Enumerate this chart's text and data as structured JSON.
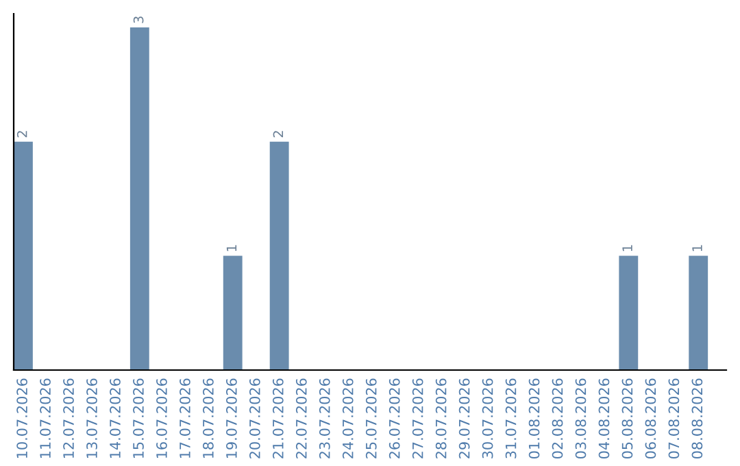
{
  "chart_data": {
    "type": "bar",
    "categories": [
      "10.07.2026",
      "11.07.2026",
      "12.07.2026",
      "13.07.2026",
      "14.07.2026",
      "15.07.2026",
      "16.07.2026",
      "17.07.2026",
      "18.07.2026",
      "19.07.2026",
      "20.07.2026",
      "21.07.2026",
      "22.07.2026",
      "23.07.2026",
      "24.07.2026",
      "25.07.2026",
      "26.07.2026",
      "27.07.2026",
      "28.07.2026",
      "29.07.2026",
      "30.07.2026",
      "31.07.2026",
      "01.08.2026",
      "02.08.2026",
      "03.08.2026",
      "04.08.2026",
      "05.08.2026",
      "06.08.2026",
      "07.08.2026",
      "08.08.2026"
    ],
    "values": [
      2,
      0,
      0,
      0,
      0,
      3,
      0,
      0,
      0,
      1,
      0,
      2,
      0,
      0,
      0,
      0,
      0,
      0,
      0,
      0,
      0,
      0,
      0,
      0,
      0,
      0,
      1,
      0,
      0,
      1
    ],
    "value_labels": [
      "2",
      null,
      null,
      null,
      null,
      "3",
      null,
      null,
      null,
      "1",
      null,
      "2",
      null,
      null,
      null,
      null,
      null,
      null,
      null,
      null,
      null,
      null,
      null,
      null,
      null,
      null,
      "1",
      null,
      null,
      "1"
    ],
    "color": "#6a8cad",
    "grid": false,
    "legend": false
  }
}
